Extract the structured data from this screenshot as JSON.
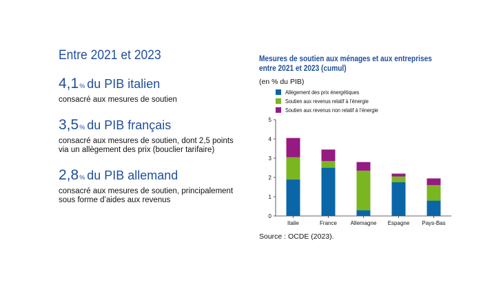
{
  "left": {
    "heading": "Entre 2021 et 2023",
    "stats": [
      {
        "value": "4,1",
        "unit": "%",
        "label": "du PIB italien",
        "desc": "consacré aux mesures de soutien"
      },
      {
        "value": "3,5",
        "unit": "%",
        "label": "du PIB français",
        "desc": "consacré aux mesures de soutien, dont 2,5 points via un allègement des prix (bouclier tarifaire)"
      },
      {
        "value": "2,8",
        "unit": "%",
        "label": "du PIB allemand",
        "desc": "consacré aux mesures de soutien, principalement sous forme d’aides aux revenus"
      }
    ]
  },
  "chart": {
    "title_line1": "Mesures de soutien aux ménages et aux entreprises",
    "title_line2": "entre 2021 et 2023 (cumul)",
    "unit_label": "(en % du PIB)",
    "source": "Source : OCDE (2023)."
  },
  "chart_data": {
    "type": "bar",
    "stacked": true,
    "categories": [
      "Italie",
      "France",
      "Allemagne",
      "Espagne",
      "Pays-Bas"
    ],
    "series": [
      {
        "name": "Allègement des prix énergétiques",
        "color": "#0b66a8",
        "values": [
          1.9,
          2.5,
          0.3,
          1.75,
          0.8
        ]
      },
      {
        "name": "Soutien aux revenus relatif à l’énergie",
        "color": "#7ab61f",
        "values": [
          1.15,
          0.35,
          2.05,
          0.3,
          0.8
        ]
      },
      {
        "name": "Soutien aux revenus non relatif à l’énergie",
        "color": "#951a82",
        "values": [
          1.0,
          0.6,
          0.45,
          0.15,
          0.35
        ]
      }
    ],
    "yticks": [
      0,
      1,
      2,
      3,
      4,
      5
    ],
    "ylim": [
      0,
      5
    ],
    "grid": false,
    "legend_position": "top-left"
  }
}
